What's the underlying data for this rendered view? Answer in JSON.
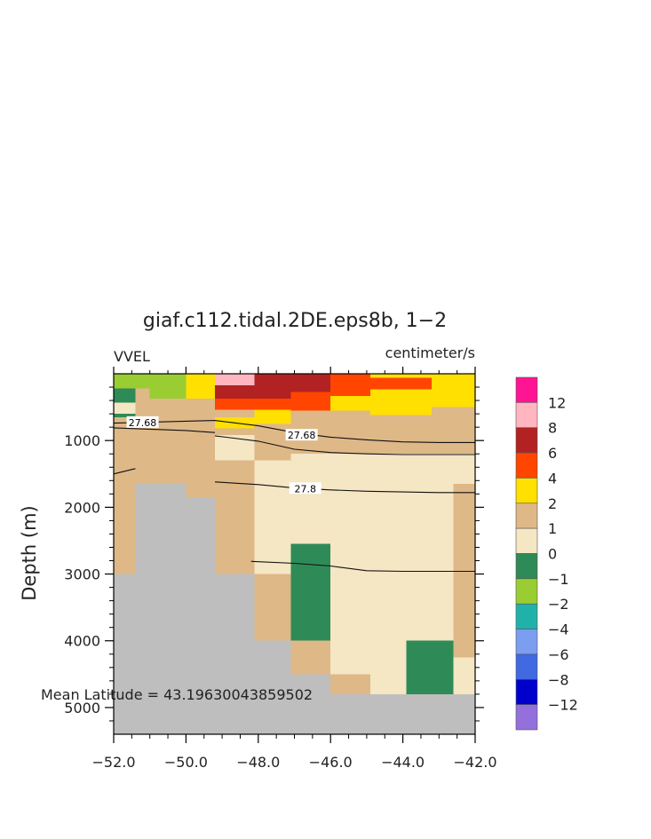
{
  "chart_data": {
    "type": "heatmap",
    "title": "giaf.c112.tidal.2DE.eps8b, 1−2",
    "variable": "VVEL",
    "units": "centimeter/s",
    "ylabel": "Depth (m)",
    "xlabel": "",
    "annotation": "Mean Latitude = 43.19630043859502",
    "xlim": [
      -52,
      -42
    ],
    "ylim": [
      5400,
      0
    ],
    "x_ticks": [
      "−52.0",
      "−50.0",
      "−48.0",
      "−46.0",
      "−44.0",
      "−42.0"
    ],
    "y_ticks": [
      "1000",
      "2000",
      "3000",
      "4000",
      "5000"
    ],
    "colorbar_labels": [
      "12",
      "8",
      "6",
      "4",
      "2",
      "1",
      "0",
      "−1",
      "−2",
      "−4",
      "−6",
      "−8",
      "−12"
    ],
    "colorbar_colors": [
      "#ff1493",
      "#ffb6c1",
      "#b22222",
      "#ff4500",
      "#ffe000",
      "#deb887",
      "#f5e6c4",
      "#2e8b57",
      "#9acd32",
      "#20b2aa",
      "#7b9ef0",
      "#4169e1",
      "#0000cd",
      "#9370db"
    ],
    "land_color": "#bebebe",
    "contour_labels": [
      "27.68",
      "27.68",
      "27.8"
    ],
    "contour_levels": [
      27.68,
      27.8
    ],
    "contours": [
      {
        "level": 27.68,
        "points": [
          [
            -52,
            740
          ],
          [
            -50.6,
            720
          ],
          [
            -49.2,
            700
          ],
          [
            -48.0,
            780
          ],
          [
            -47.0,
            880
          ],
          [
            -46.0,
            950
          ],
          [
            -45.0,
            990
          ],
          [
            -44.0,
            1020
          ],
          [
            -43.0,
            1030
          ],
          [
            -42.0,
            1030
          ]
        ]
      },
      {
        "level": 27.68,
        "points": [
          [
            -52,
            810
          ],
          [
            -51.0,
            830
          ],
          [
            -50.0,
            850
          ],
          [
            -49.2,
            880
          ]
        ]
      },
      {
        "level": 27.68,
        "points": [
          [
            -49.2,
            930
          ],
          [
            -48.0,
            1010
          ],
          [
            -47.0,
            1130
          ],
          [
            -46.0,
            1180
          ],
          [
            -45.0,
            1200
          ],
          [
            -44.0,
            1210
          ],
          [
            -43.0,
            1210
          ],
          [
            -42.0,
            1210
          ]
        ]
      },
      {
        "level": 27.68,
        "points": [
          [
            -52,
            1500
          ],
          [
            -51.4,
            1420
          ]
        ]
      },
      {
        "level": 27.8,
        "points": [
          [
            -49.2,
            1620
          ],
          [
            -48.0,
            1660
          ],
          [
            -47.0,
            1710
          ],
          [
            -46.0,
            1740
          ],
          [
            -45.0,
            1760
          ],
          [
            -44.0,
            1770
          ],
          [
            -43.0,
            1780
          ],
          [
            -42.0,
            1780
          ]
        ]
      },
      {
        "level": 27.8,
        "points": [
          [
            -48.2,
            2810
          ],
          [
            -47.0,
            2840
          ],
          [
            -46.0,
            2880
          ],
          [
            -45.0,
            2950
          ],
          [
            -44.0,
            2960
          ],
          [
            -43.0,
            2960
          ],
          [
            -42.0,
            2960
          ]
        ]
      }
    ],
    "cells": [
      {
        "x0": -52.0,
        "x1": -51.0,
        "y0": 0,
        "y1": 220,
        "v": -2
      },
      {
        "x0": -51.0,
        "x1": -50.0,
        "y0": 0,
        "y1": 370,
        "v": -2
      },
      {
        "x0": -52.0,
        "x1": -51.4,
        "y0": 220,
        "y1": 430,
        "v": -1
      },
      {
        "x0": -52.0,
        "x1": -51.4,
        "y0": 430,
        "y1": 600,
        "v": 0
      },
      {
        "x0": -52.0,
        "x1": -51.4,
        "y0": 600,
        "y1": 650,
        "v": -1
      },
      {
        "x0": -51.4,
        "x1": -51.0,
        "y0": 220,
        "y1": 650,
        "v": 1
      },
      {
        "x0": -51.0,
        "x1": -50.0,
        "y0": 370,
        "y1": 650,
        "v": 1
      },
      {
        "x0": -50.0,
        "x1": -49.2,
        "y0": 0,
        "y1": 370,
        "v": 2
      },
      {
        "x0": -50.0,
        "x1": -49.2,
        "y0": 370,
        "y1": 650,
        "v": 1
      },
      {
        "x0": -52.0,
        "x1": -49.2,
        "y0": 650,
        "y1": 1650,
        "v": 1
      },
      {
        "x0": -52.0,
        "x1": -51.4,
        "y0": 1650,
        "y1": 3000,
        "v": 1
      },
      {
        "x0": -50.0,
        "x1": -49.2,
        "y0": 1650,
        "y1": 1850,
        "v": 1
      },
      {
        "x0": -49.2,
        "x1": -48.1,
        "y0": 0,
        "y1": 170,
        "v": 8
      },
      {
        "x0": -49.2,
        "x1": -48.1,
        "y0": 170,
        "y1": 370,
        "v": 6
      },
      {
        "x0": -48.1,
        "x1": -47.1,
        "y0": 0,
        "y1": 370,
        "v": 6
      },
      {
        "x0": -49.2,
        "x1": -47.1,
        "y0": 370,
        "y1": 540,
        "v": 4
      },
      {
        "x0": -49.2,
        "x1": -48.1,
        "y0": 540,
        "y1": 650,
        "v": 1
      },
      {
        "x0": -48.1,
        "x1": -47.1,
        "y0": 540,
        "y1": 750,
        "v": 2
      },
      {
        "x0": -49.2,
        "x1": -48.1,
        "y0": 650,
        "y1": 820,
        "v": 2
      },
      {
        "x0": -49.2,
        "x1": -48.1,
        "y0": 820,
        "y1": 920,
        "v": 1
      },
      {
        "x0": -48.1,
        "x1": -47.1,
        "y0": 750,
        "y1": 920,
        "v": 1
      },
      {
        "x0": -49.2,
        "x1": -48.1,
        "y0": 920,
        "y1": 1300,
        "v": 0
      },
      {
        "x0": -48.1,
        "x1": -47.1,
        "y0": 920,
        "y1": 1300,
        "v": 1
      },
      {
        "x0": -49.2,
        "x1": -48.1,
        "y0": 1300,
        "y1": 3000,
        "v": 1
      },
      {
        "x0": -47.1,
        "x1": -46.0,
        "y0": 0,
        "y1": 270,
        "v": 6
      },
      {
        "x0": -47.1,
        "x1": -46.0,
        "y0": 270,
        "y1": 550,
        "v": 4
      },
      {
        "x0": -47.1,
        "x1": -46.0,
        "y0": 550,
        "y1": 1200,
        "v": 1
      },
      {
        "x0": -46.0,
        "x1": -44.9,
        "y0": 0,
        "y1": 330,
        "v": 4
      },
      {
        "x0": -46.0,
        "x1": -44.9,
        "y0": 330,
        "y1": 550,
        "v": 2
      },
      {
        "x0": -46.0,
        "x1": -44.9,
        "y0": 550,
        "y1": 1200,
        "v": 1
      },
      {
        "x0": -44.9,
        "x1": -43.2,
        "y0": 0,
        "y1": 60,
        "v": 2
      },
      {
        "x0": -44.9,
        "x1": -43.2,
        "y0": 60,
        "y1": 230,
        "v": 4
      },
      {
        "x0": -44.9,
        "x1": -43.2,
        "y0": 230,
        "y1": 620,
        "v": 2
      },
      {
        "x0": -44.9,
        "x1": -43.2,
        "y0": 620,
        "y1": 1200,
        "v": 1
      },
      {
        "x0": -43.2,
        "x1": -42.0,
        "y0": 0,
        "y1": 500,
        "v": 2
      },
      {
        "x0": -43.2,
        "x1": -42.0,
        "y0": 500,
        "y1": 1200,
        "v": 1
      },
      {
        "x0": -48.1,
        "x1": -47.1,
        "y0": 1300,
        "y1": 3000,
        "v": 0
      },
      {
        "x0": -47.1,
        "x1": -42.6,
        "y0": 1200,
        "y1": 3000,
        "v": 0
      },
      {
        "x0": -42.6,
        "x1": -42.0,
        "y0": 1200,
        "y1": 1650,
        "v": 0
      },
      {
        "x0": -42.6,
        "x1": -42.0,
        "y0": 1650,
        "y1": 3000,
        "v": 1
      },
      {
        "x0": -47.1,
        "x1": -46.0,
        "y0": 2550,
        "y1": 3000,
        "v": -1
      },
      {
        "x0": -48.1,
        "x1": -47.1,
        "y0": 3000,
        "y1": 4000,
        "v": 1
      },
      {
        "x0": -47.1,
        "x1": -46.0,
        "y0": 3000,
        "y1": 4000,
        "v": -1
      },
      {
        "x0": -46.0,
        "x1": -42.6,
        "y0": 3000,
        "y1": 4500,
        "v": 0
      },
      {
        "x0": -42.6,
        "x1": -42.0,
        "y0": 3000,
        "y1": 4250,
        "v": 1
      },
      {
        "x0": -47.1,
        "x1": -46.0,
        "y0": 4000,
        "y1": 4500,
        "v": 1
      },
      {
        "x0": -46.0,
        "x1": -44.9,
        "y0": 4500,
        "y1": 4800,
        "v": 1
      },
      {
        "x0": -44.9,
        "x1": -43.9,
        "y0": 4500,
        "y1": 4800,
        "v": 0
      },
      {
        "x0": -43.9,
        "x1": -42.6,
        "y0": 4000,
        "y1": 4800,
        "v": -1
      },
      {
        "x0": -42.6,
        "x1": -42.0,
        "y0": 4250,
        "y1": 4800,
        "v": 0
      }
    ],
    "land": [
      {
        "x0": -51.4,
        "x1": -50.0,
        "y0": 1650,
        "y1": 5400
      },
      {
        "x0": -50.0,
        "x1": -49.2,
        "y0": 1850,
        "y1": 5400
      },
      {
        "x0": -52.0,
        "x1": -51.4,
        "y0": 3000,
        "y1": 5400
      },
      {
        "x0": -49.2,
        "x1": -48.1,
        "y0": 3000,
        "y1": 5400
      },
      {
        "x0": -48.1,
        "x1": -47.1,
        "y0": 4000,
        "y1": 5400
      },
      {
        "x0": -47.1,
        "x1": -46.0,
        "y0": 4500,
        "y1": 5400
      },
      {
        "x0": -46.0,
        "x1": -42.0,
        "y0": 4800,
        "y1": 5400
      }
    ]
  }
}
